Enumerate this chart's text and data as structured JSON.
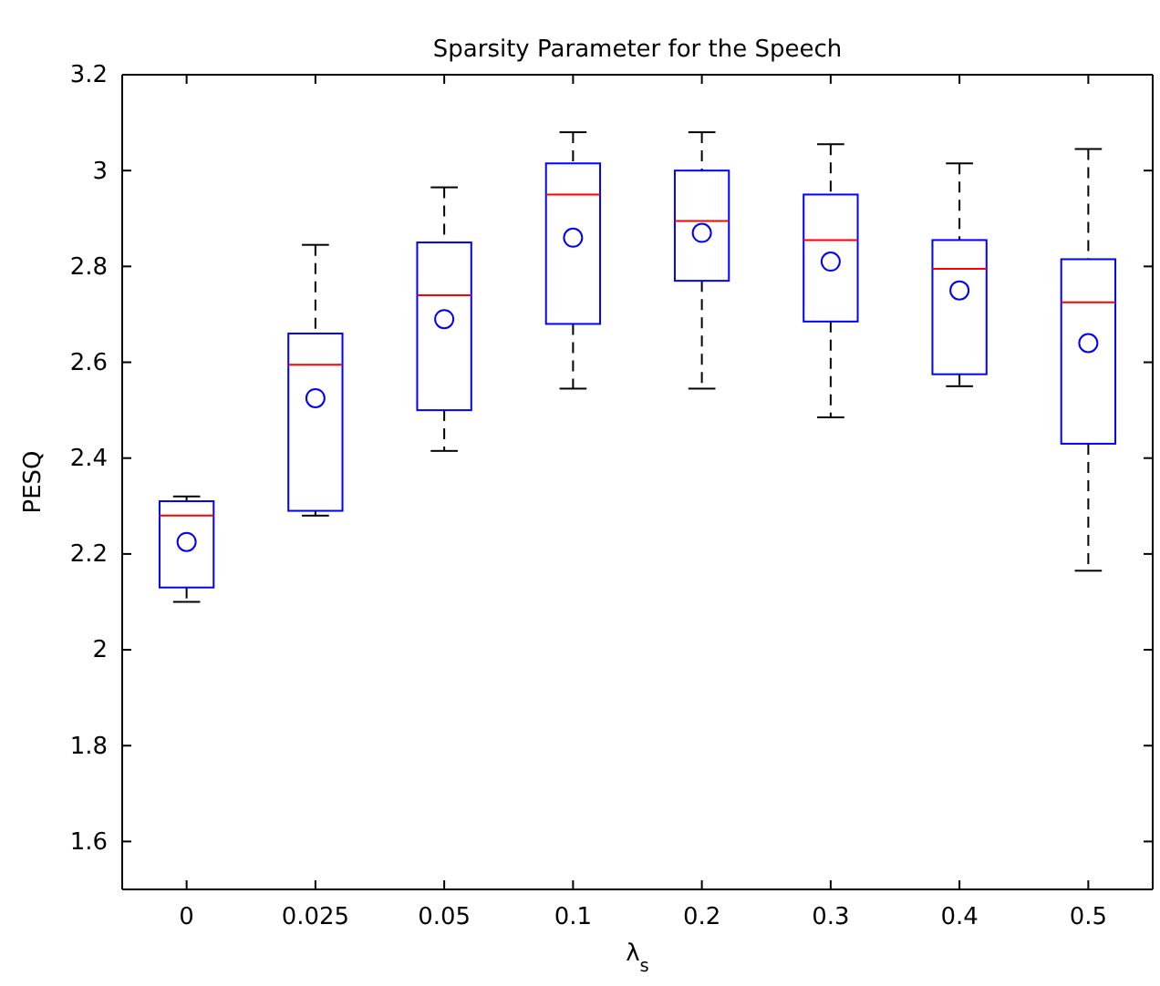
{
  "chart_data": {
    "type": "box",
    "title": "Sparsity Parameter for the Speech",
    "xlabel": "λ$_{s}$",
    "ylabel": "PESQ",
    "categories": [
      "0",
      "0.025",
      "0.05",
      "0.1",
      "0.2",
      "0.3",
      "0.4",
      "0.5"
    ],
    "ylim": [
      1.5,
      3.2
    ],
    "yticks": [
      1.6,
      1.8,
      2,
      2.2,
      2.4,
      2.6,
      2.8,
      3,
      3.2
    ],
    "grid": false,
    "marker": "circle",
    "color": "#0000ff",
    "boxes": [
      {
        "low": 2.1,
        "q1": 2.13,
        "median": 2.28,
        "q3": 2.31,
        "high": 2.32,
        "mean": 2.225
      },
      {
        "low": 2.28,
        "q1": 2.29,
        "median": 2.595,
        "q3": 2.66,
        "high": 2.845,
        "mean": 2.525
      },
      {
        "low": 2.415,
        "q1": 2.5,
        "median": 2.74,
        "q3": 2.85,
        "high": 2.965,
        "mean": 2.69
      },
      {
        "low": 2.545,
        "q1": 2.68,
        "median": 2.95,
        "q3": 3.015,
        "high": 3.08,
        "mean": 2.86
      },
      {
        "low": 2.545,
        "q1": 2.77,
        "median": 2.895,
        "q3": 3.0,
        "high": 3.08,
        "mean": 2.87
      },
      {
        "low": 2.485,
        "q1": 2.685,
        "median": 2.855,
        "q3": 2.95,
        "high": 3.055,
        "mean": 2.81
      },
      {
        "low": 2.55,
        "q1": 2.575,
        "median": 2.795,
        "q3": 2.855,
        "high": 3.015,
        "mean": 2.75
      },
      {
        "low": 2.165,
        "q1": 2.43,
        "median": 2.725,
        "q3": 2.815,
        "high": 3.045,
        "mean": 2.64
      }
    ]
  }
}
